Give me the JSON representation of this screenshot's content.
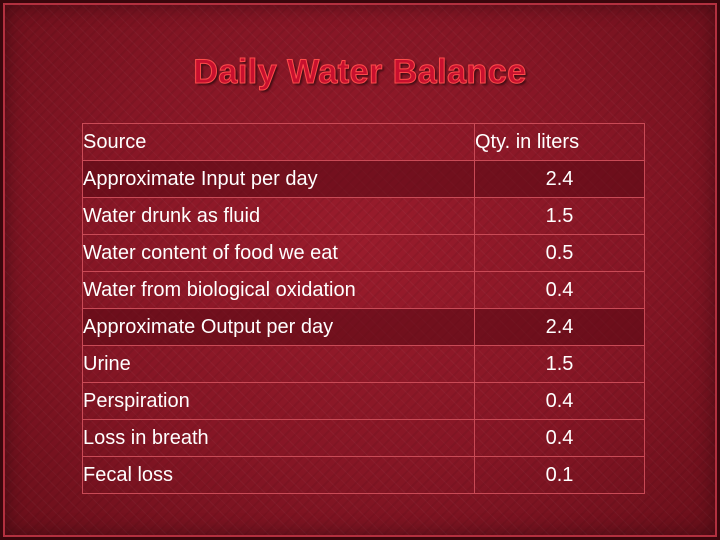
{
  "title": "Daily Water Balance",
  "table": {
    "headers": {
      "source": "Source",
      "qty": "Qty. in liters"
    },
    "rows": [
      {
        "label": "Approximate Input per day",
        "qty": "2.4",
        "level": "group"
      },
      {
        "label": "Water drunk as fluid",
        "qty": "1.5",
        "level": "sub"
      },
      {
        "label": "Water content of food we eat",
        "qty": "0.5",
        "level": "sub"
      },
      {
        "label": "Water from biological oxidation",
        "qty": "0.4",
        "level": "sub"
      },
      {
        "label": "Approximate Output per day",
        "qty": "2.4",
        "level": "group"
      },
      {
        "label": "Urine",
        "qty": "1.5",
        "level": "sub"
      },
      {
        "label": "Perspiration",
        "qty": "0.4",
        "level": "sub"
      },
      {
        "label": "Loss in breath",
        "qty": "0.4",
        "level": "sub"
      },
      {
        "label": "Fecal loss",
        "qty": "0.1",
        "level": "sub"
      }
    ]
  }
}
